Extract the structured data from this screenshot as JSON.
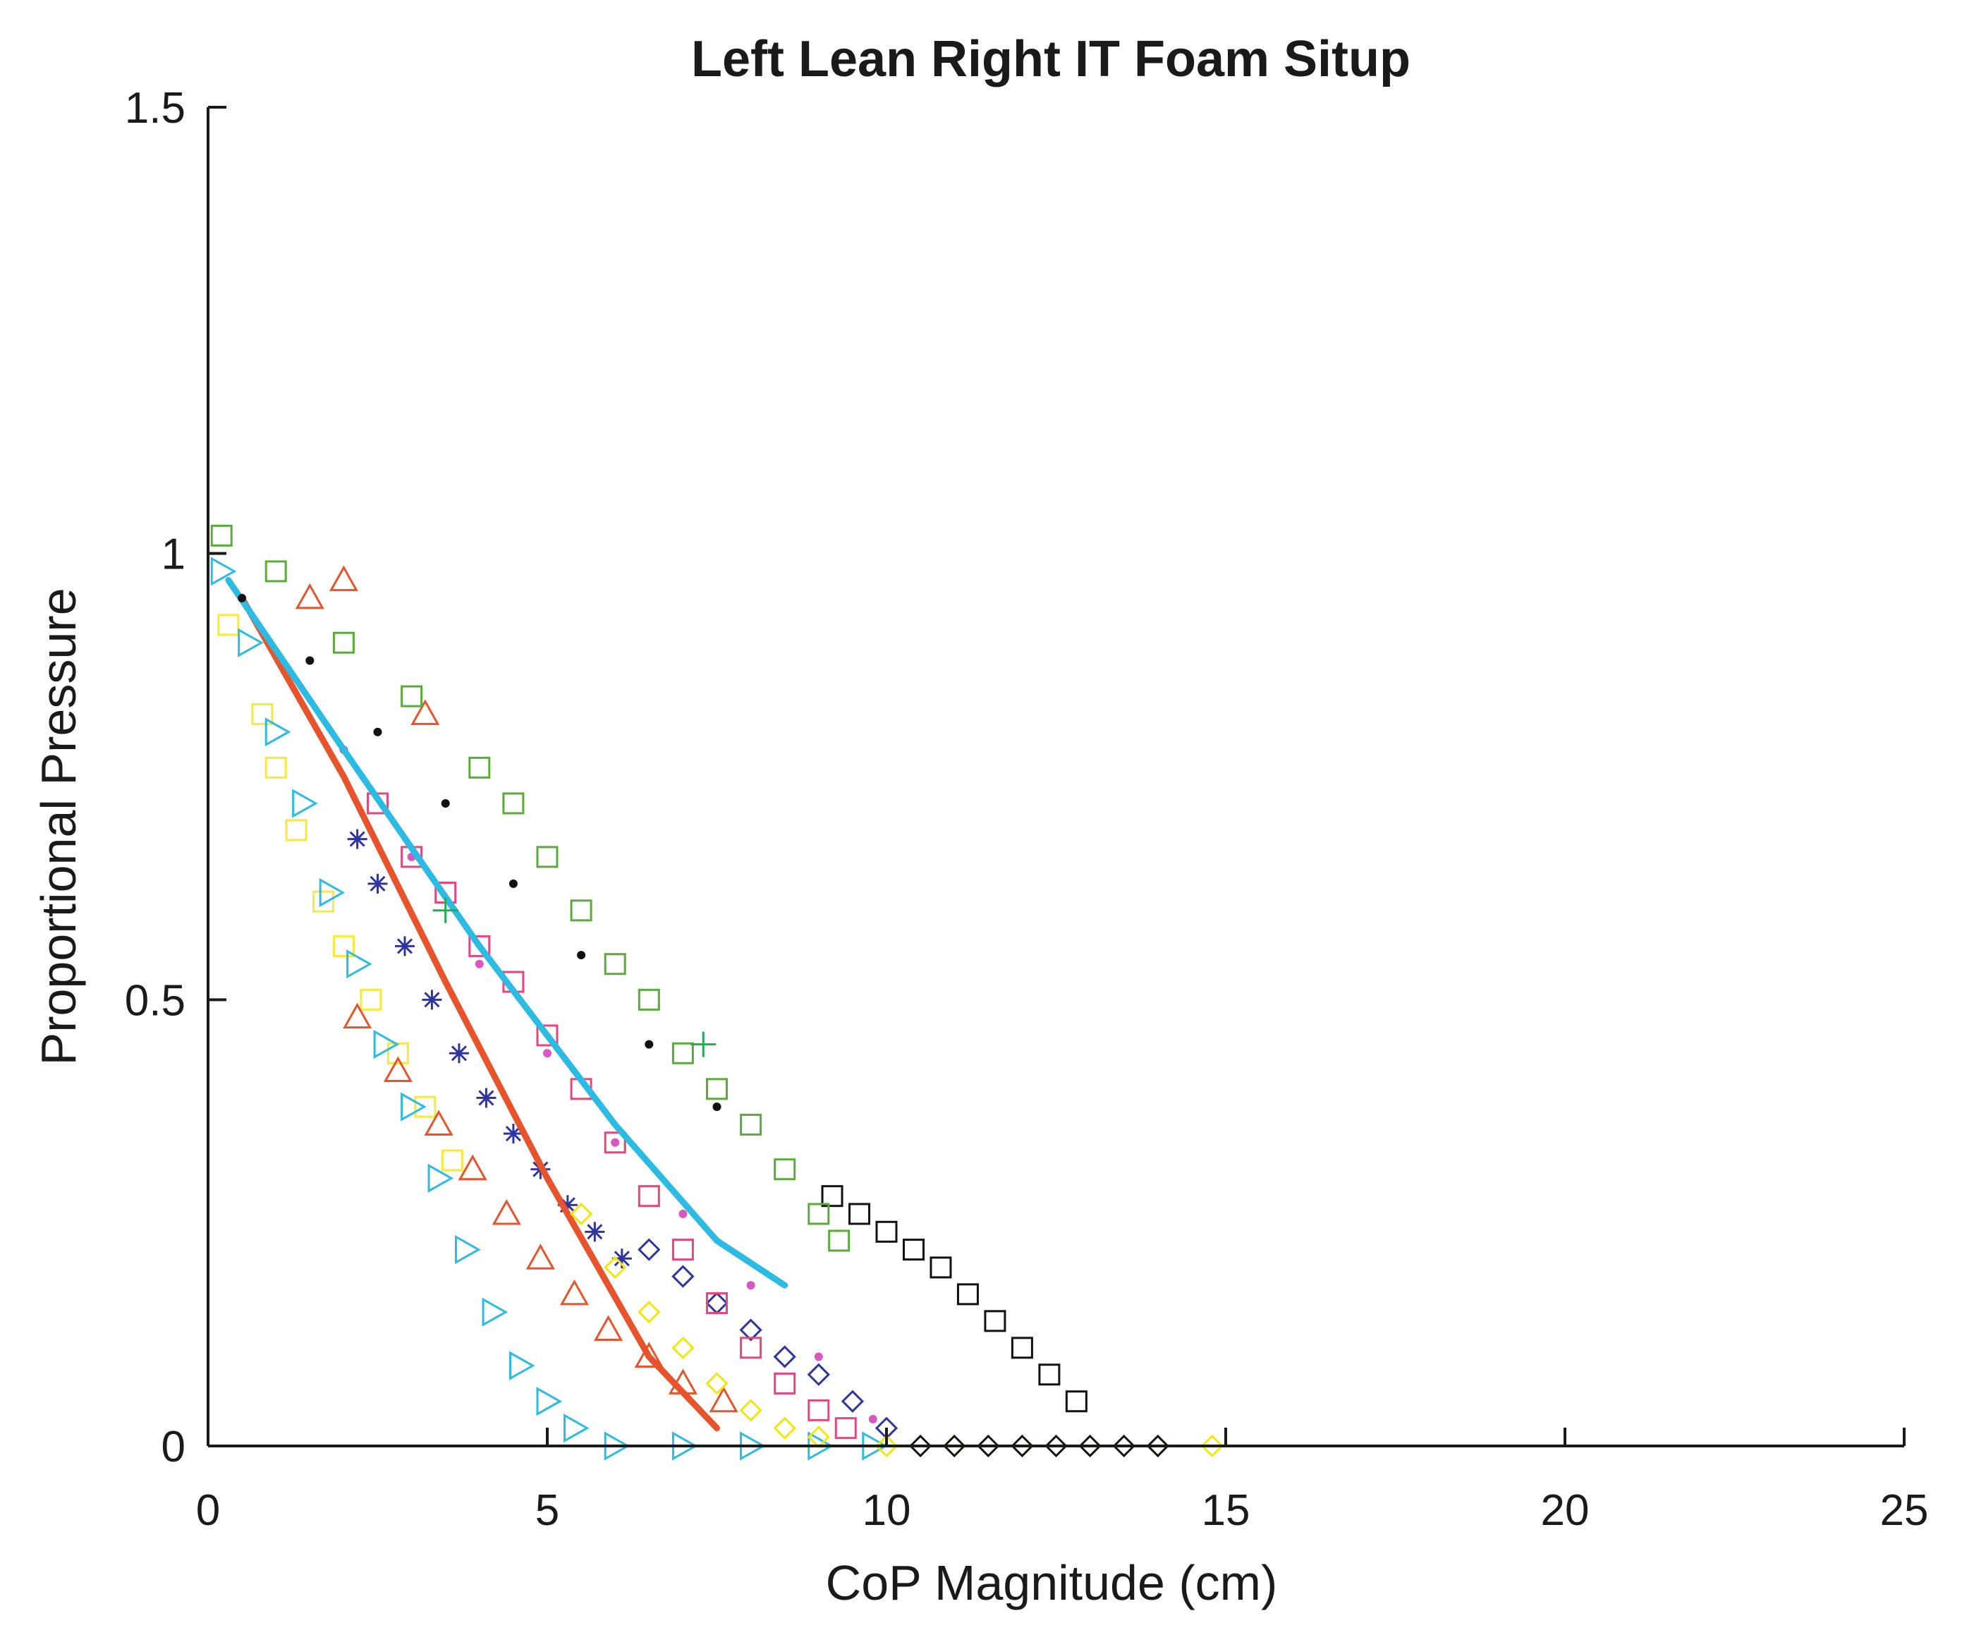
{
  "chart_data": {
    "type": "scatter",
    "title": "Left Lean Right IT Foam Situp",
    "xlabel": "CoP Magnitude (cm)",
    "ylabel": "Proportional Pressure",
    "xlim": [
      0,
      25
    ],
    "ylim": [
      0,
      1.5
    ],
    "xticks": [
      0,
      5,
      10,
      15,
      20,
      25
    ],
    "xtick_labels": [
      "0",
      "5",
      "10",
      "15",
      "20",
      "25"
    ],
    "yticks": [
      0,
      0.5,
      1,
      1.5
    ],
    "ytick_labels": [
      "0",
      "0.5",
      "1",
      "1.5"
    ],
    "grid": false,
    "legend": "none",
    "series": [
      {
        "color": "#f7e93c",
        "marker": "square",
        "x": [
          0.3,
          0.8,
          1.0,
          1.3,
          1.7,
          2.0,
          2.4,
          2.8,
          3.2,
          3.6
        ],
        "y": [
          0.92,
          0.82,
          0.76,
          0.69,
          0.61,
          0.56,
          0.5,
          0.44,
          0.38,
          0.32
        ]
      },
      {
        "color": "#2bbbe3",
        "marker": "triangle-right",
        "x": [
          0.2,
          0.6,
          1.0,
          1.4,
          1.8,
          2.2,
          2.6,
          3.0,
          3.4,
          3.8,
          4.2,
          4.6,
          5.0,
          5.4,
          6.0,
          7.0,
          8.0,
          9.0,
          9.8
        ],
        "y": [
          0.98,
          0.9,
          0.8,
          0.72,
          0.62,
          0.54,
          0.45,
          0.38,
          0.3,
          0.22,
          0.15,
          0.09,
          0.05,
          0.02,
          0.0,
          0.0,
          0.0,
          0.0,
          0.0
        ]
      },
      {
        "color": "#e8532c",
        "marker": "triangle-up",
        "x": [
          1.5,
          2.0,
          3.2,
          2.2,
          2.8,
          3.4,
          3.9,
          4.4,
          4.9,
          5.4,
          5.9,
          6.5,
          7.0,
          7.6
        ],
        "y": [
          0.95,
          0.97,
          0.82,
          0.48,
          0.42,
          0.36,
          0.31,
          0.26,
          0.21,
          0.17,
          0.13,
          0.1,
          0.07,
          0.05
        ]
      },
      {
        "color": "#2e35a0",
        "marker": "asterisk",
        "x": [
          2.2,
          2.5,
          2.9,
          3.3,
          3.7,
          4.1,
          4.5,
          4.9,
          5.3,
          5.7,
          6.1
        ],
        "y": [
          0.68,
          0.63,
          0.56,
          0.5,
          0.44,
          0.39,
          0.35,
          0.31,
          0.27,
          0.24,
          0.21
        ]
      },
      {
        "color": "#2e35a0",
        "marker": "diamond",
        "x": [
          6.5,
          7.0,
          7.5,
          8.0,
          8.5,
          9.0,
          9.5,
          10.0
        ],
        "y": [
          0.22,
          0.19,
          0.16,
          0.13,
          0.1,
          0.08,
          0.05,
          0.02
        ]
      },
      {
        "color": "#e8532c",
        "marker": "line",
        "x": [
          0.5,
          2.0,
          3.5,
          5.0,
          6.5,
          7.5
        ],
        "y": [
          0.95,
          0.75,
          0.52,
          0.3,
          0.1,
          0.02
        ]
      },
      {
        "color": "#e8457b",
        "marker": "square",
        "x": [
          2.5,
          3.0,
          3.5,
          4.0,
          4.5,
          5.0,
          5.5,
          6.0,
          6.5,
          7.0,
          7.5,
          8.0,
          8.5,
          9.0,
          9.4
        ],
        "y": [
          0.72,
          0.66,
          0.62,
          0.56,
          0.52,
          0.46,
          0.4,
          0.34,
          0.28,
          0.22,
          0.16,
          0.11,
          0.07,
          0.04,
          0.02
        ]
      },
      {
        "color": "#d957c0",
        "marker": "point",
        "x": [
          2.0,
          3.0,
          4.0,
          5.0,
          6.0,
          7.0,
          8.0,
          9.0,
          9.8
        ],
        "y": [
          0.78,
          0.66,
          0.54,
          0.44,
          0.34,
          0.26,
          0.18,
          0.1,
          0.03
        ]
      },
      {
        "color": "#f5e60a",
        "marker": "diamond",
        "x": [
          5.5,
          6.0,
          6.5,
          7.0,
          7.5,
          8.0,
          8.5,
          9.0,
          10.0,
          11.0,
          12.0,
          13.0,
          14.0,
          14.8
        ],
        "y": [
          0.26,
          0.2,
          0.15,
          0.11,
          0.07,
          0.04,
          0.02,
          0.01,
          0.0,
          0.0,
          0.0,
          0.0,
          0.0,
          0.0
        ]
      },
      {
        "color": "#2bbbe3",
        "marker": "line",
        "x": [
          0.3,
          2.0,
          4.0,
          6.0,
          7.5,
          8.5
        ],
        "y": [
          0.97,
          0.78,
          0.56,
          0.36,
          0.23,
          0.18
        ]
      },
      {
        "color": "#111111",
        "marker": "point",
        "x": [
          0.5,
          1.5,
          2.5,
          3.5,
          4.5,
          5.5,
          6.5,
          7.5
        ],
        "y": [
          0.95,
          0.88,
          0.8,
          0.72,
          0.63,
          0.55,
          0.45,
          0.38
        ]
      },
      {
        "color": "#111111",
        "marker": "square",
        "x": [
          9.2,
          9.6,
          10.0,
          10.4,
          10.8,
          11.2,
          11.6,
          12.0,
          12.4,
          12.8
        ],
        "y": [
          0.28,
          0.26,
          0.24,
          0.22,
          0.2,
          0.17,
          0.14,
          0.11,
          0.08,
          0.05
        ]
      },
      {
        "color": "#111111",
        "marker": "diamond",
        "x": [
          10.5,
          11.0,
          11.5,
          12.0,
          12.5,
          13.0,
          13.5,
          14.0
        ],
        "y": [
          0.0,
          0.0,
          0.0,
          0.0,
          0.0,
          0.0,
          0.0,
          0.0
        ]
      },
      {
        "color": "#5aab3a",
        "marker": "square",
        "x": [
          0.2,
          1.0,
          2.0,
          3.0,
          4.0,
          4.5,
          5.0,
          5.5,
          6.0,
          6.5,
          7.0,
          7.5,
          8.0,
          8.5,
          9.0,
          9.3
        ],
        "y": [
          1.02,
          0.98,
          0.9,
          0.84,
          0.76,
          0.72,
          0.66,
          0.6,
          0.54,
          0.5,
          0.44,
          0.4,
          0.36,
          0.31,
          0.26,
          0.23
        ]
      },
      {
        "color": "#22aa55",
        "marker": "plus",
        "x": [
          7.3,
          3.5
        ],
        "y": [
          0.45,
          0.6
        ]
      }
    ]
  }
}
